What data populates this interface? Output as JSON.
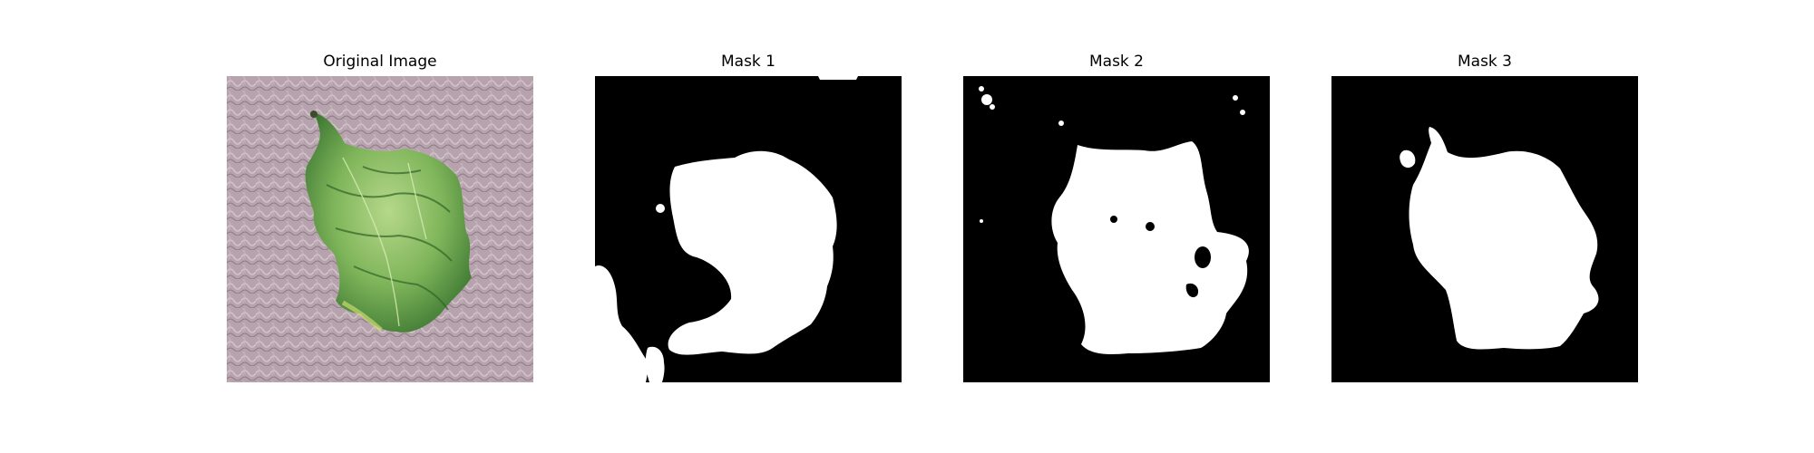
{
  "panels": [
    {
      "title": "Original Image",
      "kind": "photo",
      "subject": "green-lettuce-leaf-on-pink-textured-background"
    },
    {
      "title": "Mask 1",
      "kind": "mask"
    },
    {
      "title": "Mask 2",
      "kind": "mask"
    },
    {
      "title": "Mask 3",
      "kind": "mask"
    }
  ],
  "colors": {
    "photo_background": "#b7a3ad",
    "leaf_light": "#b6d88a",
    "leaf_mid": "#7fb55a",
    "leaf_dark": "#3f7a34",
    "mask_background": "#000000",
    "mask_foreground": "#ffffff"
  }
}
